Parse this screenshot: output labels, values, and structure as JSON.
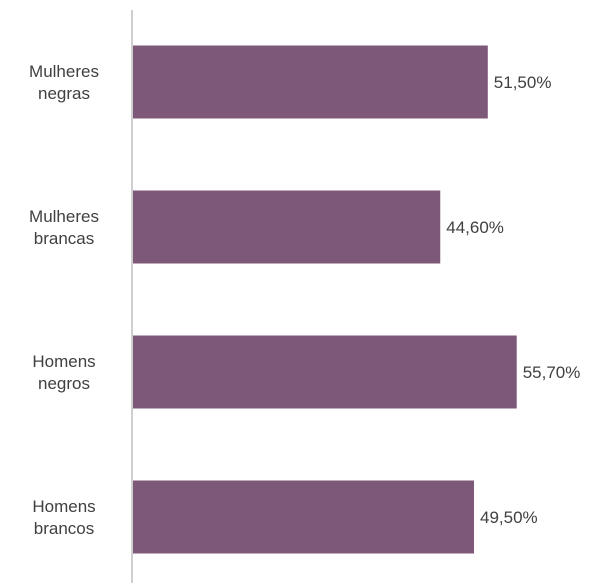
{
  "chart_data": {
    "type": "bar",
    "orientation": "horizontal",
    "categories": [
      "Mulheres negras",
      "Mulheres brancas",
      "Homens negros",
      "Homens brancos"
    ],
    "category_lines": [
      [
        "Mulheres",
        "negras"
      ],
      [
        "Mulheres",
        "brancas"
      ],
      [
        "Homens",
        "negros"
      ],
      [
        "Homens",
        "brancos"
      ]
    ],
    "values": [
      51.5,
      44.6,
      55.7,
      49.5
    ],
    "data_labels": [
      "51,50%",
      "44,60%",
      "55,70%",
      "49,50%"
    ],
    "unit": "%",
    "xlim": [
      0,
      61.4
    ],
    "grid": false,
    "legend": "none",
    "colors": {
      "bar": "#7E5879",
      "axis": "#BFBFBF",
      "text": "#404040"
    }
  }
}
